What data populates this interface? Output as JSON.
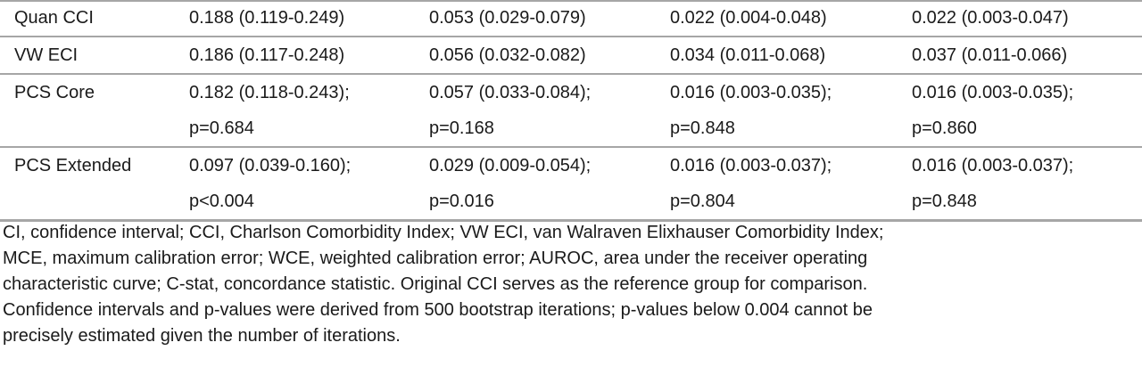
{
  "table": {
    "rows": [
      {
        "label": "Quan CCI",
        "cells": [
          [
            "0.188 (0.119-0.249)"
          ],
          [
            "0.053 (0.029-0.079)"
          ],
          [
            "0.022 (0.004-0.048)"
          ],
          [
            "0.022 (0.003-0.047)"
          ]
        ]
      },
      {
        "label": "VW ECI",
        "cells": [
          [
            "0.186 (0.117-0.248)"
          ],
          [
            "0.056 (0.032-0.082)"
          ],
          [
            "0.034 (0.011-0.068)"
          ],
          [
            "0.037 (0.011-0.066)"
          ]
        ]
      },
      {
        "label": "PCS Core",
        "cells": [
          [
            "0.182 (0.118-0.243);",
            "p=0.684"
          ],
          [
            "0.057 (0.033-0.084);",
            "p=0.168"
          ],
          [
            "0.016 (0.003-0.035);",
            "p=0.848"
          ],
          [
            "0.016 (0.003-0.035);",
            "p=0.860"
          ]
        ]
      },
      {
        "label": "PCS Extended",
        "cells": [
          [
            "0.097 (0.039-0.160);",
            "p<0.004"
          ],
          [
            "0.029 (0.009-0.054);",
            "p=0.016"
          ],
          [
            "0.016 (0.003-0.037);",
            "p=0.804"
          ],
          [
            "0.016 (0.003-0.037);",
            "p=0.848"
          ]
        ]
      }
    ]
  },
  "notes": [
    "CI, confidence interval; CCI, Charlson Comorbidity Index; VW ECI, van Walraven Elixhauser Comorbidity Index;",
    "MCE, maximum calibration error; WCE, weighted calibration error; AUROC, area under the receiver operating",
    "characteristic curve; C-stat, concordance statistic. Original CCI serves as the reference group for comparison.",
    "Confidence intervals and p-values were derived from 500 bootstrap iterations; p-values below 0.004 cannot be",
    "precisely estimated given the number of iterations."
  ]
}
